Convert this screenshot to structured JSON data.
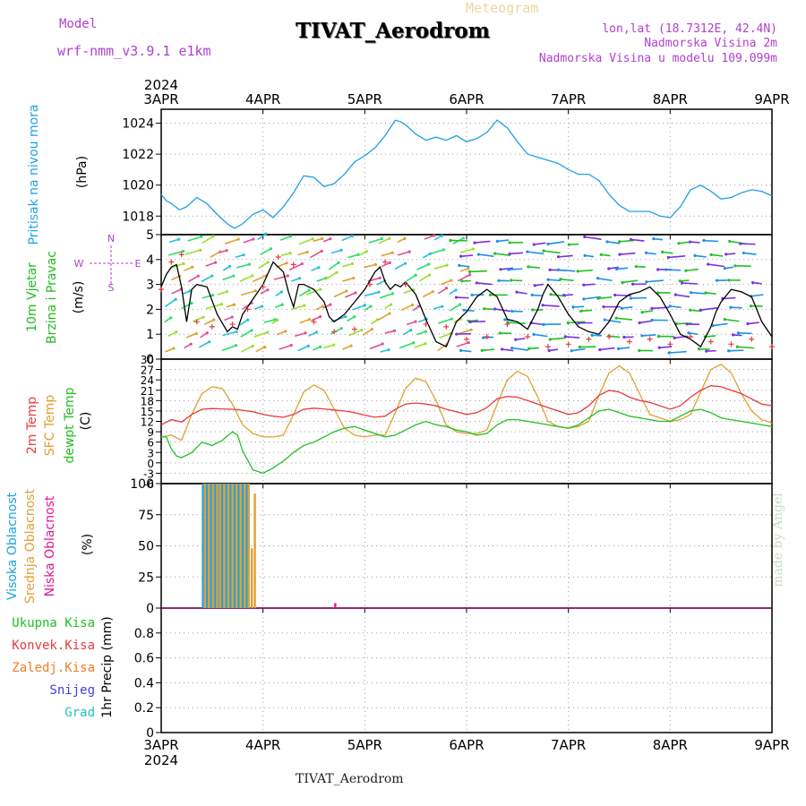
{
  "header": {
    "model_label": "Model",
    "model_name": "wrf-nmm_v3.9.1  e1km",
    "title": "TIVAT_Aerodrom",
    "meteogram_label": "Meteogram",
    "lonlat": "lon,lat (18.7312E, 42.4N)",
    "elevation": "Nadmorska Visina 2m",
    "model_elevation": "Nadmorska Visina u modelu 109.099m",
    "footer_station": "TIVAT_Aerodrom",
    "credit": "made by Angel"
  },
  "colors": {
    "pressure": "#1ea0e6",
    "wind_label": "#22bb22",
    "wind_dir": "#b040d0",
    "temp2m": "#e63c3c",
    "sfc": "#e0a030",
    "dew": "#22c022",
    "cloud_high": "#1ea0e6",
    "cloud_mid": "#e0a030",
    "cloud_low": "#e01890",
    "precip_total": "#22c022",
    "precip_conv": "#e63c3c",
    "precip_frz": "#f07c28",
    "precip_snow": "#4040e0",
    "precip_hail": "#20c0c0"
  },
  "chart_data": [
    {
      "type": "line",
      "panel": "pressure",
      "ylabel": [
        "Pritisak na nivou mora",
        "(hPa)"
      ],
      "ylim": [
        1016.8,
        1024.9
      ],
      "yticks": [
        1018,
        1020,
        1022,
        1024
      ],
      "x_year": "2024",
      "x_dates": [
        "3APR",
        "4APR",
        "5APR",
        "6APR",
        "7APR",
        "8APR",
        "9APR"
      ],
      "grid": true,
      "series": [
        {
          "x": [
            0,
            0.05,
            0.1,
            0.18,
            0.25,
            0.35,
            0.45,
            0.55,
            0.65,
            0.72,
            0.8,
            0.9,
            1.0,
            1.1,
            1.2,
            1.3,
            1.4,
            1.5,
            1.6,
            1.7,
            1.8,
            1.9,
            2.0,
            2.1,
            2.2,
            2.3,
            2.35,
            2.4,
            2.45,
            2.5,
            2.6,
            2.7,
            2.8,
            2.9,
            3.0,
            3.1,
            3.2,
            3.3,
            3.4,
            3.5,
            3.6,
            3.7,
            3.8,
            3.9,
            4.0,
            4.1,
            4.2,
            4.3,
            4.4,
            4.5,
            4.6,
            4.7,
            4.8,
            4.9,
            5.0,
            5.1,
            5.2,
            5.3,
            5.4,
            5.5,
            5.6,
            5.7,
            5.8,
            5.9,
            6.0
          ],
          "values": [
            1019.4,
            1019.0,
            1018.8,
            1018.4,
            1018.6,
            1019.2,
            1018.8,
            1018.1,
            1017.5,
            1017.2,
            1017.5,
            1018.1,
            1018.4,
            1017.9,
            1018.6,
            1019.5,
            1020.6,
            1020.5,
            1019.9,
            1020.1,
            1020.7,
            1021.5,
            1021.9,
            1022.4,
            1023.2,
            1024.2,
            1024.1,
            1023.9,
            1023.6,
            1023.3,
            1022.9,
            1023.1,
            1022.9,
            1023.2,
            1022.8,
            1023.0,
            1023.4,
            1024.2,
            1023.7,
            1022.8,
            1022.0,
            1021.8,
            1021.6,
            1021.4,
            1021.0,
            1020.7,
            1020.7,
            1020.3,
            1019.4,
            1018.7,
            1018.3,
            1018.3,
            1018.3,
            1018.0,
            1017.9,
            1018.6,
            1019.7,
            1020.0,
            1019.6,
            1019.1,
            1019.2,
            1019.5,
            1019.7,
            1019.6,
            1019.3
          ]
        }
      ]
    },
    {
      "type": "line",
      "panel": "wind",
      "ylabel": [
        "10m Vjetar",
        "Brzina i Pravac",
        "(m/s)"
      ],
      "compass": [
        "N",
        "W",
        "E",
        "S"
      ],
      "ylim": [
        0,
        5
      ],
      "yticks": [
        0,
        1,
        2,
        3,
        4,
        5
      ],
      "grid": true,
      "series": [
        {
          "name": "wind speed",
          "x": [
            0,
            0.05,
            0.1,
            0.15,
            0.2,
            0.25,
            0.3,
            0.35,
            0.45,
            0.55,
            0.65,
            0.7,
            0.75,
            0.8,
            0.9,
            1.0,
            1.1,
            1.2,
            1.25,
            1.3,
            1.35,
            1.4,
            1.5,
            1.6,
            1.65,
            1.7,
            1.8,
            1.9,
            2.0,
            2.1,
            2.15,
            2.2,
            2.25,
            2.3,
            2.35,
            2.4,
            2.5,
            2.6,
            2.7,
            2.75,
            2.8,
            2.9,
            3.0,
            3.1,
            3.2,
            3.3,
            3.4,
            3.5,
            3.6,
            3.7,
            3.75,
            3.8,
            3.9,
            4.0,
            4.1,
            4.2,
            4.3,
            4.4,
            4.5,
            4.6,
            4.7,
            4.8,
            4.9,
            5.0,
            5.1,
            5.2,
            5.3,
            5.4,
            5.45,
            5.5,
            5.6,
            5.7,
            5.8,
            5.9,
            6.0
          ],
          "values": [
            2.9,
            3.4,
            3.7,
            3.8,
            2.9,
            1.5,
            2.8,
            3.0,
            2.9,
            1.8,
            1.1,
            1.3,
            1.2,
            1.8,
            2.4,
            3.0,
            3.9,
            3.5,
            2.7,
            2.1,
            3.0,
            3.0,
            2.8,
            2.3,
            1.7,
            1.5,
            1.8,
            2.3,
            2.8,
            3.5,
            3.7,
            3.1,
            2.8,
            3.0,
            2.9,
            3.1,
            2.6,
            1.6,
            0.7,
            0.6,
            0.5,
            1.5,
            1.9,
            2.5,
            2.8,
            2.5,
            1.6,
            1.5,
            1.2,
            2.0,
            2.6,
            3.0,
            2.5,
            1.8,
            1.3,
            1.1,
            1.0,
            1.5,
            2.3,
            2.6,
            2.7,
            2.9,
            2.5,
            1.8,
            1.0,
            0.8,
            0.5,
            1.3,
            1.9,
            2.3,
            2.8,
            2.7,
            2.5,
            1.5,
            0.9
          ]
        },
        {
          "name": "wind gust markers",
          "x": [
            0,
            0.1,
            0.2,
            0.35,
            0.5,
            0.7,
            0.85,
            1.0,
            1.15,
            1.3,
            1.5,
            1.7,
            1.9,
            2.05,
            2.2,
            2.4,
            2.6,
            2.8,
            3.0,
            3.2,
            3.4,
            3.6,
            3.8,
            4.0,
            4.2,
            4.4,
            4.6,
            4.8,
            5.0,
            5.2,
            5.4,
            5.6,
            5.8,
            6.0
          ],
          "values": [
            2.8,
            3.9,
            4.2,
            1.5,
            1.3,
            1.4,
            2.0,
            2.9,
            4.1,
            3.8,
            1.5,
            1.1,
            1.2,
            3.0,
            3.9,
            3.0,
            1.4,
            1.3,
            0.8,
            0.9,
            1.4,
            0.9,
            0.5,
            0.6,
            0.8,
            0.9,
            0.7,
            0.8,
            0.6,
            0.9,
            0.7,
            0.6,
            0.8,
            0.5
          ]
        }
      ]
    },
    {
      "type": "line",
      "panel": "temperature",
      "ylabel": [
        "2m Temp",
        "SFC Temp",
        "dewpt Temp",
        "(C)"
      ],
      "ylim": [
        -6,
        30
      ],
      "yticks": [
        -6,
        -3,
        0,
        3,
        6,
        9,
        12,
        15,
        18,
        21,
        24,
        27,
        30
      ],
      "grid": true,
      "series": [
        {
          "name": "2m Temp",
          "x": [
            0,
            0.1,
            0.2,
            0.3,
            0.4,
            0.5,
            0.6,
            0.7,
            0.8,
            0.9,
            1.0,
            1.1,
            1.2,
            1.3,
            1.4,
            1.5,
            1.6,
            1.7,
            1.8,
            1.9,
            2.0,
            2.1,
            2.2,
            2.3,
            2.4,
            2.5,
            2.6,
            2.7,
            2.8,
            2.9,
            3.0,
            3.1,
            3.2,
            3.3,
            3.4,
            3.5,
            3.6,
            3.7,
            3.8,
            3.9,
            4.0,
            4.1,
            4.2,
            4.3,
            4.4,
            4.5,
            4.6,
            4.7,
            4.8,
            4.9,
            5.0,
            5.1,
            5.2,
            5.3,
            5.4,
            5.5,
            5.6,
            5.7,
            5.8,
            5.9,
            6.0
          ],
          "values": [
            11.0,
            12.5,
            11.8,
            14.0,
            15.5,
            15.7,
            15.6,
            15.5,
            15.2,
            14.8,
            14.0,
            13.5,
            13.2,
            14.0,
            15.5,
            15.8,
            15.6,
            15.3,
            15.0,
            14.5,
            13.8,
            13.2,
            13.5,
            15.5,
            17.0,
            17.3,
            17.0,
            16.5,
            15.5,
            14.8,
            14.0,
            14.5,
            16.0,
            18.5,
            19.2,
            19.0,
            18.0,
            17.0,
            16.0,
            15.0,
            14.0,
            14.5,
            16.5,
            19.5,
            21.0,
            20.5,
            19.0,
            18.0,
            17.5,
            16.5,
            15.5,
            16.5,
            19.0,
            21.0,
            22.3,
            22.0,
            21.0,
            20.0,
            18.5,
            17.0,
            16.5
          ]
        },
        {
          "name": "SFC Temp",
          "x": [
            0,
            0.1,
            0.2,
            0.3,
            0.4,
            0.5,
            0.6,
            0.7,
            0.8,
            0.9,
            1.0,
            1.1,
            1.2,
            1.3,
            1.4,
            1.5,
            1.6,
            1.7,
            1.8,
            1.9,
            2.0,
            2.1,
            2.2,
            2.3,
            2.4,
            2.5,
            2.6,
            2.7,
            2.8,
            2.9,
            3.0,
            3.1,
            3.2,
            3.3,
            3.4,
            3.5,
            3.6,
            3.7,
            3.8,
            3.9,
            4.0,
            4.1,
            4.2,
            4.3,
            4.4,
            4.5,
            4.6,
            4.7,
            4.8,
            4.9,
            5.0,
            5.1,
            5.2,
            5.3,
            5.4,
            5.5,
            5.6,
            5.7,
            5.8,
            5.9,
            6.0
          ],
          "values": [
            7.5,
            8.0,
            6.5,
            14.0,
            20.0,
            22.0,
            21.5,
            17.0,
            11.0,
            8.5,
            7.5,
            7.5,
            8.0,
            14.0,
            20.5,
            22.5,
            21.0,
            15.5,
            10.0,
            8.0,
            7.5,
            8.0,
            8.0,
            14.5,
            21.5,
            24.5,
            23.5,
            18.0,
            11.0,
            9.0,
            8.5,
            8.5,
            9.5,
            17.0,
            24.0,
            26.5,
            25.0,
            19.0,
            12.0,
            10.5,
            10.0,
            10.5,
            12.0,
            19.5,
            26.0,
            28.0,
            26.0,
            20.0,
            14.0,
            13.0,
            12.0,
            12.5,
            14.0,
            20.5,
            27.0,
            28.5,
            26.0,
            20.0,
            15.0,
            12.5,
            11.5
          ]
        },
        {
          "name": "dewpt Temp",
          "x": [
            0,
            0.05,
            0.1,
            0.15,
            0.2,
            0.3,
            0.4,
            0.5,
            0.6,
            0.7,
            0.75,
            0.8,
            0.9,
            1.0,
            1.1,
            1.2,
            1.3,
            1.4,
            1.5,
            1.6,
            1.7,
            1.8,
            1.9,
            2.0,
            2.1,
            2.2,
            2.3,
            2.4,
            2.5,
            2.6,
            2.7,
            2.8,
            2.9,
            3.0,
            3.1,
            3.2,
            3.3,
            3.4,
            3.5,
            3.6,
            3.7,
            3.8,
            3.9,
            4.0,
            4.1,
            4.2,
            4.3,
            4.4,
            4.5,
            4.6,
            4.7,
            4.8,
            4.9,
            5.0,
            5.1,
            5.2,
            5.3,
            5.4,
            5.5,
            5.6,
            5.7,
            5.8,
            5.9,
            6.0
          ],
          "values": [
            7.5,
            7.5,
            4.0,
            2.0,
            1.5,
            3.0,
            6.0,
            5.0,
            6.5,
            9.0,
            8.0,
            3.5,
            -2.0,
            -3.0,
            -1.5,
            0.5,
            3.0,
            5.0,
            6.0,
            7.5,
            9.0,
            10.0,
            10.5,
            9.5,
            8.5,
            7.5,
            8.0,
            9.5,
            11.0,
            12.0,
            11.0,
            10.5,
            9.5,
            9.0,
            8.0,
            8.5,
            11.0,
            12.5,
            12.5,
            12.0,
            11.5,
            11.0,
            10.5,
            10.0,
            11.0,
            13.0,
            15.0,
            15.5,
            14.5,
            13.5,
            13.0,
            12.5,
            12.0,
            12.0,
            13.5,
            15.0,
            15.5,
            14.5,
            13.0,
            12.5,
            12.0,
            11.5,
            11.0,
            10.5
          ]
        }
      ]
    },
    {
      "type": "bar",
      "panel": "clouds",
      "ylabel": [
        "Visoka Oblacnost",
        "Srednja Oblacnost",
        "Niska Oblacnost",
        "(%)"
      ],
      "ylim": [
        0,
        100
      ],
      "yticks": [
        0,
        25,
        50,
        75,
        100
      ],
      "grid": true,
      "series": [
        {
          "name": "Visoka Oblacnost",
          "x": [
            0.41,
            0.45,
            0.49,
            0.53,
            0.56,
            0.6,
            0.64,
            0.68,
            0.72,
            0.76,
            0.8,
            0.84
          ],
          "values": [
            100,
            100,
            100,
            100,
            100,
            100,
            100,
            100,
            100,
            100,
            100,
            100
          ]
        },
        {
          "name": "Srednja Oblacnost",
          "x": [
            0.43,
            0.47,
            0.51,
            0.55,
            0.58,
            0.62,
            0.66,
            0.7,
            0.74,
            0.78,
            0.82,
            0.86,
            0.89,
            0.92
          ],
          "values": [
            100,
            100,
            100,
            100,
            100,
            100,
            100,
            100,
            100,
            100,
            100,
            100,
            48,
            92
          ]
        },
        {
          "name": "Niska Oblacnost",
          "x": [
            1.71
          ],
          "values": [
            4
          ]
        }
      ]
    },
    {
      "type": "bar",
      "panel": "precip",
      "ylabel": [
        "1hr Precip (mm)"
      ],
      "legend": [
        "Ukupna  Kisa",
        "Konvek.Kisa",
        "Zaledj.Kisa",
        "Snijeg",
        "Grad"
      ],
      "ylim": [
        0,
        1
      ],
      "yticks": [
        0,
        0.2,
        0.4,
        0.6,
        0.8
      ],
      "grid": true,
      "series": []
    }
  ]
}
